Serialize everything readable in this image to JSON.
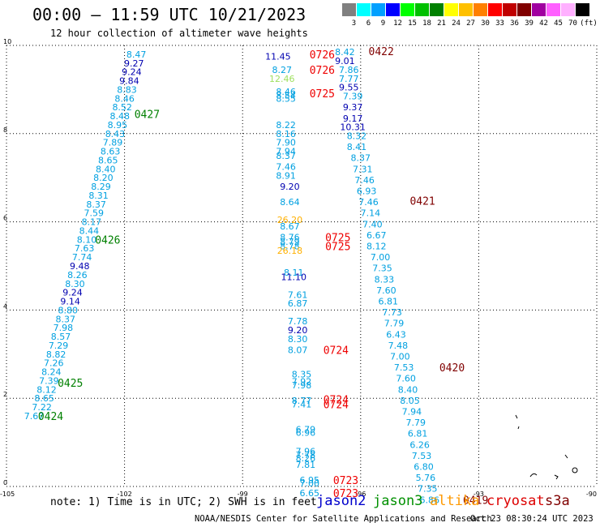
{
  "header": {
    "title": "00:00 – 11:59 UTC 10/21/2023",
    "subtitle": "12 hour collection of altimeter wave heights"
  },
  "legend": {
    "unit": "(ft)",
    "bins": [
      {
        "label": "3",
        "color": "#808080"
      },
      {
        "label": "6",
        "color": "#00ffff"
      },
      {
        "label": "9",
        "color": "#00a0ff"
      },
      {
        "label": "12",
        "color": "#0000ff"
      },
      {
        "label": "15",
        "color": "#00ff00"
      },
      {
        "label": "18",
        "color": "#00c000"
      },
      {
        "label": "21",
        "color": "#008000"
      },
      {
        "label": "24",
        "color": "#ffff00"
      },
      {
        "label": "27",
        "color": "#ffc000"
      },
      {
        "label": "30",
        "color": "#ff8000"
      },
      {
        "label": "33",
        "color": "#ff0000"
      },
      {
        "label": "36",
        "color": "#c00000"
      },
      {
        "label": "39",
        "color": "#800000"
      },
      {
        "label": "42",
        "color": "#a000a0"
      },
      {
        "label": "45",
        "color": "#ff60ff"
      },
      {
        "label": "70",
        "color": "#ffb0ff"
      },
      {
        "label": "",
        "color": "#000000"
      }
    ]
  },
  "footer": {
    "note": "note: 1) Time is in UTC; 2) SWH is in feet",
    "satellites": [
      {
        "name": "jason2",
        "color": "#0000cc"
      },
      {
        "name": "jason3",
        "color": "#009000"
      },
      {
        "name": "altika",
        "color": "#ff9900"
      },
      {
        "name": "cryosat",
        "color": "#dd0000"
      },
      {
        "name": "s3a",
        "color": "#800000"
      }
    ],
    "credit": "NOAA/NESDIS Center for Satellite Applications and Research",
    "timestamp": "Oct 23 08:30:24 UTC 2023"
  },
  "colors": {
    "c": "#00a0e0",
    "b": "#0000b0",
    "y": "#ffb000",
    "l": "#a0e060",
    "r": "#ee0000",
    "d": "#800000",
    "g": "#008000"
  },
  "chart_data": {
    "type": "scatter",
    "xlim": [
      -105,
      -90
    ],
    "ylim": [
      0,
      10
    ],
    "x_ticks": [
      "-105",
      "-102",
      "-99",
      "-96",
      "-93",
      "-90"
    ],
    "y_ticks": [
      "0",
      "2",
      "4",
      "6",
      "8",
      "10"
    ],
    "grid": true,
    "tracks": [
      {
        "pass_time": "0427",
        "pass_color": "g",
        "points": [
          {
            "x": -101.7,
            "y": 9.8,
            "v": "8.47",
            "c": "c"
          },
          {
            "x": -101.76,
            "y": 9.6,
            "v": "9.27",
            "c": "b"
          },
          {
            "x": -101.82,
            "y": 9.4,
            "v": "9.24",
            "c": "b"
          },
          {
            "x": -101.88,
            "y": 9.2,
            "v": "9.84",
            "c": "b"
          },
          {
            "x": -101.94,
            "y": 9.0,
            "v": "8.83",
            "c": "c"
          },
          {
            "x": -102.0,
            "y": 8.8,
            "v": "8.46",
            "c": "c"
          },
          {
            "x": -102.06,
            "y": 8.6,
            "v": "8.52",
            "c": "c"
          },
          {
            "x": -102.12,
            "y": 8.4,
            "v": "8.48",
            "c": "c"
          },
          {
            "x": -102.18,
            "y": 8.2,
            "v": "8.95",
            "c": "c"
          },
          {
            "x": -102.24,
            "y": 8.0,
            "v": "8.43",
            "c": "c"
          },
          {
            "x": -102.3,
            "y": 7.8,
            "v": "7.89",
            "c": "c"
          },
          {
            "x": -102.36,
            "y": 7.6,
            "v": "8.63",
            "c": "c"
          },
          {
            "x": -102.42,
            "y": 7.4,
            "v": "8.65",
            "c": "c"
          },
          {
            "x": -102.48,
            "y": 7.2,
            "v": "8.40",
            "c": "c"
          },
          {
            "x": -102.54,
            "y": 7.0,
            "v": "8.20",
            "c": "c"
          },
          {
            "x": -102.6,
            "y": 6.8,
            "v": "8.29",
            "c": "c"
          },
          {
            "x": -102.66,
            "y": 6.6,
            "v": "8.31",
            "c": "c"
          },
          {
            "x": -102.72,
            "y": 6.4,
            "v": "8.37",
            "c": "c"
          }
        ]
      },
      {
        "pass_time": "0426",
        "pass_color": "g",
        "points": [
          {
            "x": -102.78,
            "y": 6.2,
            "v": "7.59",
            "c": "c"
          },
          {
            "x": -102.84,
            "y": 6.0,
            "v": "8.17",
            "c": "c"
          },
          {
            "x": -102.9,
            "y": 5.8,
            "v": "8.44",
            "c": "c"
          },
          {
            "x": -102.96,
            "y": 5.6,
            "v": "8.10",
            "c": "c"
          },
          {
            "x": -103.02,
            "y": 5.4,
            "v": "7.63",
            "c": "c"
          },
          {
            "x": -103.08,
            "y": 5.2,
            "v": "7.74",
            "c": "c"
          },
          {
            "x": -103.14,
            "y": 5.0,
            "v": "9.48",
            "c": "b"
          },
          {
            "x": -103.2,
            "y": 4.8,
            "v": "8.26",
            "c": "c"
          },
          {
            "x": -103.26,
            "y": 4.6,
            "v": "8.30",
            "c": "c"
          },
          {
            "x": -103.32,
            "y": 4.4,
            "v": "9.24",
            "c": "b"
          },
          {
            "x": -103.38,
            "y": 4.2,
            "v": "9.14",
            "c": "b"
          },
          {
            "x": -103.44,
            "y": 4.0,
            "v": "8.80",
            "c": "c"
          },
          {
            "x": -103.5,
            "y": 3.8,
            "v": "8.37",
            "c": "c"
          }
        ]
      },
      {
        "pass_time": "0425",
        "pass_color": "g",
        "points": [
          {
            "x": -103.56,
            "y": 3.6,
            "v": "7.98",
            "c": "c"
          },
          {
            "x": -103.62,
            "y": 3.4,
            "v": "8.57",
            "c": "c"
          },
          {
            "x": -103.68,
            "y": 3.2,
            "v": "7.29",
            "c": "c"
          },
          {
            "x": -103.74,
            "y": 3.0,
            "v": "8.82",
            "c": "c"
          },
          {
            "x": -103.8,
            "y": 2.8,
            "v": "7.26",
            "c": "c"
          },
          {
            "x": -103.86,
            "y": 2.6,
            "v": "8.24",
            "c": "c"
          },
          {
            "x": -103.92,
            "y": 2.4,
            "v": "7.39",
            "c": "c"
          },
          {
            "x": -103.98,
            "y": 2.2,
            "v": "8.12",
            "c": "c"
          },
          {
            "x": -104.04,
            "y": 2.0,
            "v": "8.65",
            "c": "c"
          }
        ]
      },
      {
        "pass_time": "0424",
        "pass_color": "g",
        "points": [
          {
            "x": -104.1,
            "y": 1.8,
            "v": "7.22",
            "c": "c"
          },
          {
            "x": -104.3,
            "y": 1.6,
            "v": "7.67",
            "c": "c"
          }
        ]
      },
      {
        "pass_time": "",
        "pass_color": "r",
        "points": [
          {
            "x": -98.1,
            "y": 9.75,
            "v": "11.45",
            "c": "b"
          },
          {
            "x": -98.0,
            "y": 9.45,
            "v": "8.27",
            "c": "c"
          },
          {
            "x": -98.0,
            "y": 9.25,
            "v": "12.46",
            "c": "l"
          },
          {
            "x": -97.9,
            "y": 8.95,
            "v": "8.46",
            "c": "c"
          },
          {
            "x": -97.9,
            "y": 8.87,
            "v": "8.54",
            "c": "c"
          },
          {
            "x": -97.9,
            "y": 8.8,
            "v": "8.55",
            "c": "c"
          },
          {
            "x": -97.9,
            "y": 8.2,
            "v": "8.22",
            "c": "c"
          },
          {
            "x": -97.9,
            "y": 8.0,
            "v": "8.16",
            "c": "c"
          },
          {
            "x": -97.9,
            "y": 7.8,
            "v": "7.90",
            "c": "c"
          },
          {
            "x": -97.9,
            "y": 7.6,
            "v": "7.94",
            "c": "c"
          },
          {
            "x": -97.9,
            "y": 7.5,
            "v": "8.37",
            "c": "c"
          },
          {
            "x": -97.9,
            "y": 7.25,
            "v": "7.46",
            "c": "c"
          },
          {
            "x": -97.9,
            "y": 7.05,
            "v": "8.91",
            "c": "c"
          },
          {
            "x": -97.8,
            "y": 6.8,
            "v": "9.20",
            "c": "b"
          },
          {
            "x": -97.8,
            "y": 6.45,
            "v": "8.64",
            "c": "c"
          },
          {
            "x": -97.8,
            "y": 6.05,
            "v": "26.20",
            "c": "y"
          },
          {
            "x": -97.8,
            "y": 5.9,
            "v": "8.67",
            "c": "c"
          },
          {
            "x": -97.8,
            "y": 5.65,
            "v": "8.76",
            "c": "c"
          },
          {
            "x": -97.8,
            "y": 5.55,
            "v": "8.79",
            "c": "c"
          },
          {
            "x": -97.8,
            "y": 5.45,
            "v": "8.78",
            "c": "c"
          },
          {
            "x": -97.8,
            "y": 5.35,
            "v": "26.18",
            "c": "y"
          },
          {
            "x": -97.7,
            "y": 4.85,
            "v": "8.11",
            "c": "c"
          },
          {
            "x": -97.7,
            "y": 4.75,
            "v": "11.10",
            "c": "b"
          },
          {
            "x": -97.6,
            "y": 4.35,
            "v": "7.61",
            "c": "c"
          },
          {
            "x": -97.6,
            "y": 4.15,
            "v": "6.87",
            "c": "c"
          },
          {
            "x": -97.6,
            "y": 3.75,
            "v": "7.78",
            "c": "c"
          },
          {
            "x": -97.6,
            "y": 3.55,
            "v": "9.20",
            "c": "b"
          },
          {
            "x": -97.6,
            "y": 3.35,
            "v": "8.30",
            "c": "c"
          },
          {
            "x": -97.6,
            "y": 3.1,
            "v": "8.07",
            "c": "c"
          },
          {
            "x": -97.5,
            "y": 2.55,
            "v": "8.35",
            "c": "c"
          },
          {
            "x": -97.5,
            "y": 2.38,
            "v": "7.92",
            "c": "c"
          },
          {
            "x": -97.5,
            "y": 2.3,
            "v": "7.98",
            "c": "c"
          },
          {
            "x": -97.5,
            "y": 1.95,
            "v": "8.77",
            "c": "c"
          },
          {
            "x": -97.5,
            "y": 1.87,
            "v": "7.41",
            "c": "c"
          },
          {
            "x": -97.4,
            "y": 1.3,
            "v": "6.79",
            "c": "c"
          },
          {
            "x": -97.4,
            "y": 1.22,
            "v": "6.96",
            "c": "c"
          },
          {
            "x": -97.4,
            "y": 0.8,
            "v": "7.96",
            "c": "c"
          },
          {
            "x": -97.4,
            "y": 0.72,
            "v": "7.78",
            "c": "c"
          },
          {
            "x": -97.4,
            "y": 0.64,
            "v": "8.26",
            "c": "c"
          },
          {
            "x": -97.4,
            "y": 0.5,
            "v": "7.81",
            "c": "c"
          },
          {
            "x": -97.3,
            "y": 0.15,
            "v": "6.95",
            "c": "c"
          },
          {
            "x": -97.3,
            "y": 0.07,
            "v": "7.00",
            "c": "c"
          },
          {
            "x": -97.3,
            "y": -0.15,
            "v": "6.65",
            "c": "c"
          }
        ]
      },
      {
        "pass_time": "",
        "pass_color": "d",
        "points": [
          {
            "x": -96.4,
            "y": 9.85,
            "v": "8.42",
            "c": "c"
          },
          {
            "x": -96.4,
            "y": 9.65,
            "v": "9.01",
            "c": "b"
          },
          {
            "x": -96.3,
            "y": 9.45,
            "v": "7.86",
            "c": "c"
          },
          {
            "x": -96.3,
            "y": 9.25,
            "v": "7.77",
            "c": "c"
          },
          {
            "x": -96.3,
            "y": 9.05,
            "v": "9.55",
            "c": "b"
          },
          {
            "x": -96.2,
            "y": 8.85,
            "v": "7.39",
            "c": "c"
          },
          {
            "x": -96.2,
            "y": 8.6,
            "v": "9.37",
            "c": "b"
          },
          {
            "x": -96.2,
            "y": 8.35,
            "v": "9.17",
            "c": "b"
          },
          {
            "x": -96.2,
            "y": 8.15,
            "v": "10.31",
            "c": "b"
          },
          {
            "x": -96.1,
            "y": 7.95,
            "v": "8.32",
            "c": "c"
          },
          {
            "x": -96.1,
            "y": 7.7,
            "v": "8.41",
            "c": "c"
          },
          {
            "x": -96.0,
            "y": 7.45,
            "v": "8.37",
            "c": "c"
          },
          {
            "x": -95.95,
            "y": 7.2,
            "v": "7.31",
            "c": "c"
          },
          {
            "x": -95.9,
            "y": 6.95,
            "v": "7.46",
            "c": "c"
          },
          {
            "x": -95.85,
            "y": 6.7,
            "v": "6.93",
            "c": "c"
          },
          {
            "x": -95.8,
            "y": 6.45,
            "v": "7.46",
            "c": "c"
          },
          {
            "x": -95.75,
            "y": 6.2,
            "v": "7.14",
            "c": "c"
          },
          {
            "x": -95.7,
            "y": 5.95,
            "v": "7.40",
            "c": "c"
          },
          {
            "x": -95.6,
            "y": 5.7,
            "v": "6.67",
            "c": "c"
          },
          {
            "x": -95.6,
            "y": 5.45,
            "v": "8.12",
            "c": "c"
          },
          {
            "x": -95.5,
            "y": 5.2,
            "v": "7.00",
            "c": "c"
          },
          {
            "x": -95.45,
            "y": 4.95,
            "v": "7.35",
            "c": "c"
          },
          {
            "x": -95.4,
            "y": 4.7,
            "v": "8.33",
            "c": "c"
          },
          {
            "x": -95.35,
            "y": 4.45,
            "v": "7.60",
            "c": "c"
          },
          {
            "x": -95.3,
            "y": 4.2,
            "v": "6.81",
            "c": "c"
          },
          {
            "x": -95.2,
            "y": 3.95,
            "v": "7.73",
            "c": "c"
          },
          {
            "x": -95.15,
            "y": 3.7,
            "v": "7.79",
            "c": "c"
          },
          {
            "x": -95.1,
            "y": 3.45,
            "v": "6.43",
            "c": "c"
          },
          {
            "x": -95.05,
            "y": 3.2,
            "v": "7.48",
            "c": "c"
          },
          {
            "x": -95.0,
            "y": 2.95,
            "v": "7.00",
            "c": "c"
          },
          {
            "x": -94.9,
            "y": 2.7,
            "v": "7.53",
            "c": "c"
          },
          {
            "x": -94.85,
            "y": 2.45,
            "v": "7.60",
            "c": "c"
          },
          {
            "x": -94.8,
            "y": 2.2,
            "v": "8.40",
            "c": "c"
          },
          {
            "x": -94.75,
            "y": 1.95,
            "v": "8.05",
            "c": "c"
          },
          {
            "x": -94.7,
            "y": 1.7,
            "v": "7.94",
            "c": "c"
          },
          {
            "x": -94.6,
            "y": 1.45,
            "v": "7.79",
            "c": "c"
          },
          {
            "x": -94.55,
            "y": 1.2,
            "v": "6.81",
            "c": "c"
          },
          {
            "x": -94.5,
            "y": 0.95,
            "v": "6.26",
            "c": "c"
          },
          {
            "x": -94.45,
            "y": 0.7,
            "v": "7.53",
            "c": "c"
          },
          {
            "x": -94.4,
            "y": 0.45,
            "v": "6.80",
            "c": "c"
          },
          {
            "x": -94.35,
            "y": 0.2,
            "v": "5.76",
            "c": "c"
          },
          {
            "x": -94.3,
            "y": -0.05,
            "v": "7.35",
            "c": "c"
          },
          {
            "x": -94.25,
            "y": -0.3,
            "v": "6.86",
            "c": "c"
          }
        ]
      }
    ],
    "pass_labels": [
      {
        "text": "0427",
        "x": -101.75,
        "y": 8.45,
        "c": "g"
      },
      {
        "text": "0426",
        "x": -102.75,
        "y": 5.6,
        "c": "g"
      },
      {
        "text": "0425",
        "x": -103.7,
        "y": 2.35,
        "c": "g"
      },
      {
        "text": "0424",
        "x": -104.2,
        "y": 1.6,
        "c": "g"
      },
      {
        "text": "0726",
        "x": -97.3,
        "y": 9.8,
        "c": "r"
      },
      {
        "text": "0726",
        "x": -97.3,
        "y": 9.45,
        "c": "r"
      },
      {
        "text": "0725",
        "x": -97.3,
        "y": 8.92,
        "c": "r"
      },
      {
        "text": "0725",
        "x": -96.9,
        "y": 5.65,
        "c": "r"
      },
      {
        "text": "0725",
        "x": -96.9,
        "y": 5.45,
        "c": "r"
      },
      {
        "text": "0724",
        "x": -96.95,
        "y": 3.1,
        "c": "r"
      },
      {
        "text": "0724",
        "x": -96.95,
        "y": 1.98,
        "c": "r"
      },
      {
        "text": "0724",
        "x": -96.95,
        "y": 1.87,
        "c": "r"
      },
      {
        "text": "0723",
        "x": -96.7,
        "y": 0.15,
        "c": "r"
      },
      {
        "text": "0723",
        "x": -96.7,
        "y": -0.15,
        "c": "r"
      },
      {
        "text": "0422",
        "x": -95.8,
        "y": 9.87,
        "c": "d"
      },
      {
        "text": "0421",
        "x": -94.75,
        "y": 6.48,
        "c": "d"
      },
      {
        "text": "0420",
        "x": -94.0,
        "y": 2.7,
        "c": "d"
      },
      {
        "text": "0419",
        "x": -93.4,
        "y": -0.3,
        "c": "d"
      }
    ]
  }
}
